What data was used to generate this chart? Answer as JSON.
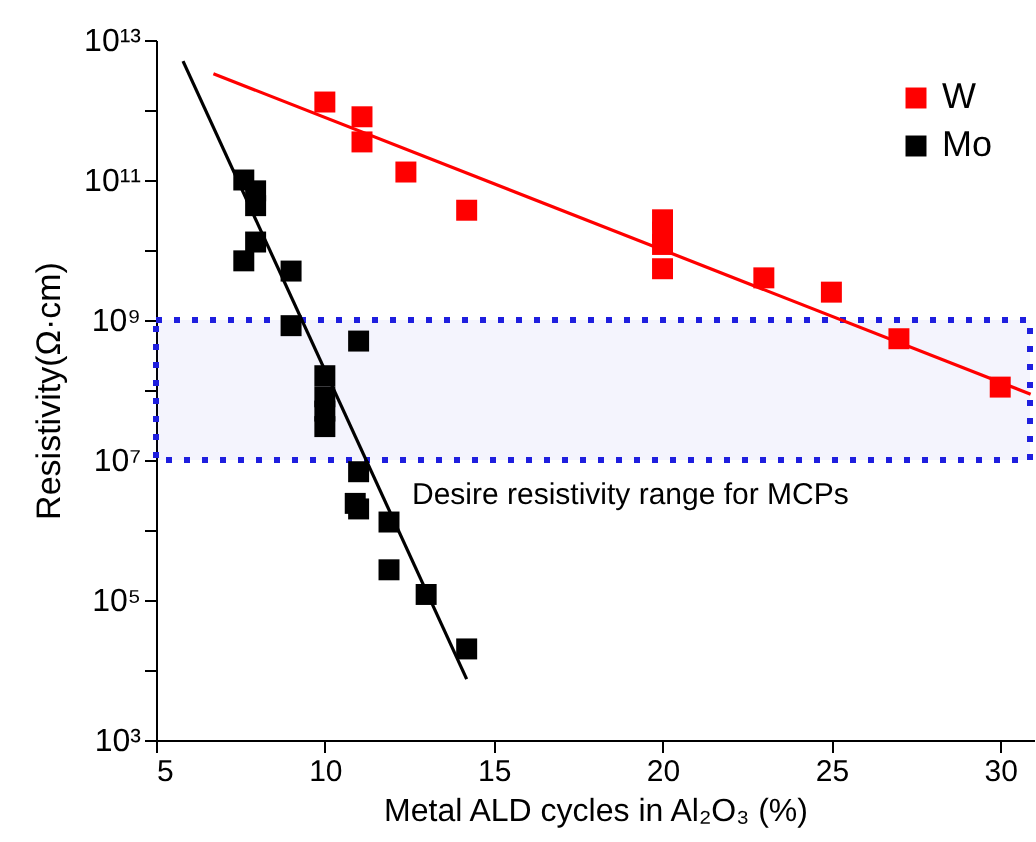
{
  "chart_data": {
    "type": "scatter",
    "xlabel": "Metal ALD cycles in Al₂O₃ (%)",
    "ylabel": "Resistivity(Ω·cm)",
    "log": "y",
    "grid": false,
    "legend": "top right",
    "xlim": [
      5,
      31
    ],
    "xticks": [
      5,
      10,
      15,
      20,
      25,
      30
    ],
    "ylim": [
      1000.0,
      10000000000000.0
    ],
    "yticks": [
      {
        "value": 1000.0,
        "label": "10³"
      },
      {
        "value": 10000.0,
        "label": null
      },
      {
        "value": 100000.0,
        "label": "10⁵"
      },
      {
        "value": 1000000.0,
        "label": null
      },
      {
        "value": 10000000.0,
        "label": "10⁷"
      },
      {
        "value": 100000000.0,
        "label": null
      },
      {
        "value": 1000000000.0,
        "label": "10⁹"
      },
      {
        "value": 10000000000.0,
        "label": null
      },
      {
        "value": 100000000000.0,
        "label": "10¹¹"
      },
      {
        "value": 1000000000000.0,
        "label": null
      },
      {
        "value": 10000000000000.0,
        "label": "10¹³"
      }
    ],
    "bands": [
      {
        "axis": "y",
        "from": 10000000.0,
        "to": 1000000000.0,
        "label": "Desire resistivity range for MCPs",
        "color": "#1f1fdf"
      }
    ],
    "series": [
      {
        "name": "W",
        "marker": "square",
        "color": "#ff0000",
        "x": [
          10,
          11.1,
          11.1,
          12.4,
          14.2,
          20,
          20,
          20,
          20,
          23,
          25,
          27,
          30
        ],
        "values": [
          1300000000000.0,
          800000000000.0,
          350000000000.0,
          130000000000.0,
          37000000000.0,
          27000000000.0,
          18000000000.0,
          12000000000.0,
          5400000000.0,
          4000000000.0,
          2500000000.0,
          540000000.0,
          110000000.0
        ]
      },
      {
        "name": "Mo",
        "marker": "square",
        "color": "#000000",
        "x": [
          7.6,
          7.95,
          7.95,
          7.95,
          7.6,
          9,
          9,
          11,
          10,
          10,
          10,
          10,
          11,
          10.9,
          11,
          11.9,
          11.9,
          13,
          14.2
        ],
        "values": [
          100000000000.0,
          70000000000.0,
          43000000000.0,
          13000000000.0,
          7000000000.0,
          5000000000.0,
          830000000.0,
          500000000.0,
          160000000.0,
          80000000.0,
          50000000.0,
          30000000.0,
          6800000.0,
          2400000.0,
          2000000.0,
          1300000.0,
          270000.0,
          120000.0,
          20000.0
        ]
      },
      {
        "type": "line",
        "color": "#ff0000",
        "x": [
          6.7,
          30.9
        ],
        "values": [
          3300000000000.0,
          87000000.0
        ]
      },
      {
        "type": "line",
        "color": "#000000",
        "x": [
          5.8,
          14.2
        ],
        "values": [
          5000000000000.0,
          7400.0
        ]
      }
    ]
  }
}
